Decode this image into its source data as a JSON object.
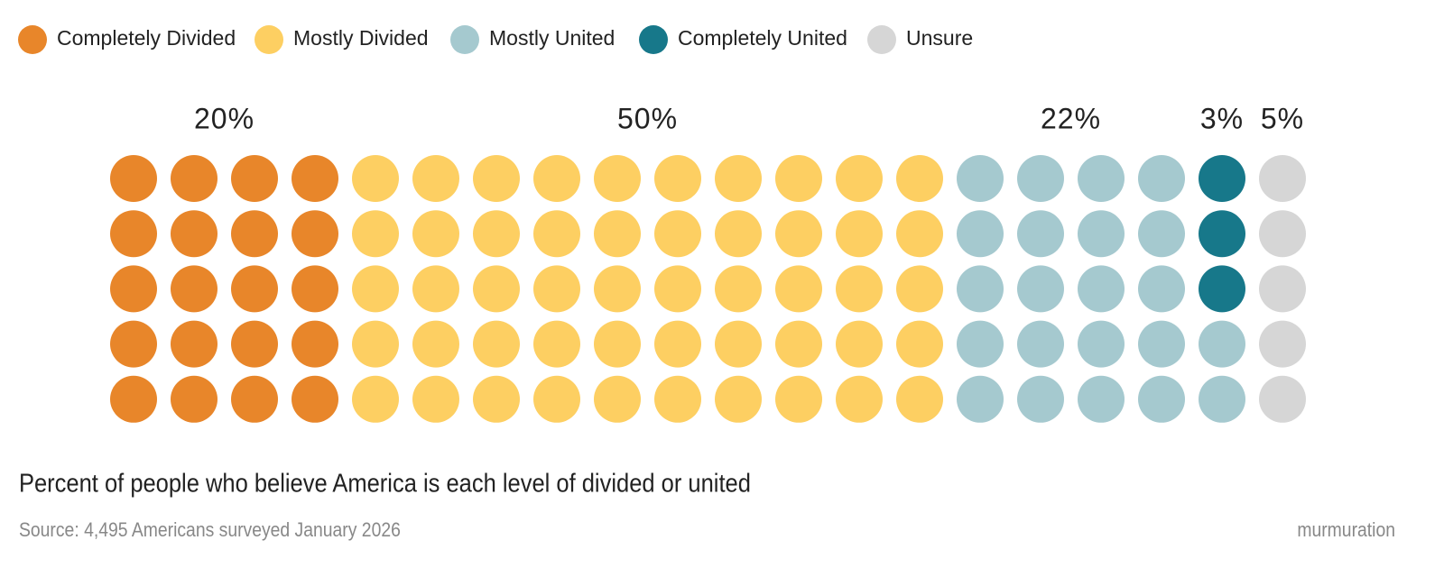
{
  "chart_data": {
    "type": "waffle",
    "title": "Percent of people who believe America is each level of divided or united",
    "source": "Source: 4,495 Americans surveyed January 2026",
    "series": [
      {
        "name": "Completely Divided",
        "color": "#e8862a",
        "values": [
          20
        ],
        "value_labels": [
          "20%"
        ]
      },
      {
        "name": "Mostly Divided",
        "color": "#fdcf62",
        "values": [
          50
        ],
        "value_labels": [
          "50%"
        ]
      },
      {
        "name": "Mostly United",
        "color": "#a5c9cf",
        "values": [
          22
        ],
        "value_labels": [
          "22%"
        ]
      },
      {
        "name": "Completely United",
        "color": "#17788a",
        "values": [
          3
        ],
        "value_labels": [
          "3%"
        ]
      },
      {
        "name": "Unsure",
        "color": "#d6d6d6",
        "values": [
          5
        ],
        "value_labels": [
          "5%"
        ]
      }
    ]
  },
  "brand": "murmuration"
}
